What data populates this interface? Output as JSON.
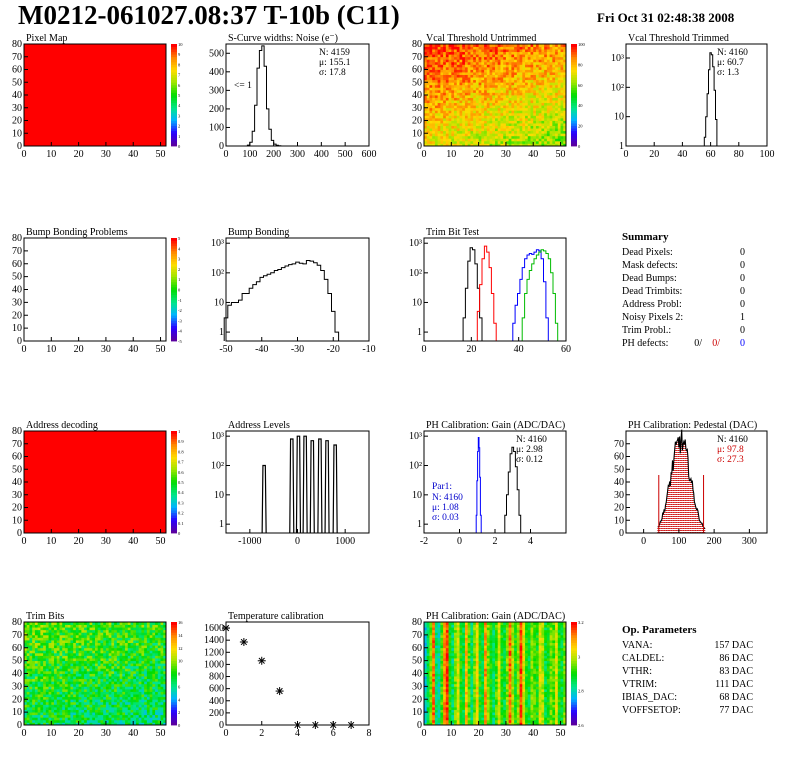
{
  "header": {
    "title": "M0212-061027.08:37 T-10b (C11)",
    "date": "Fri Oct 31 02:48:38 2008"
  },
  "chart_data": [
    {
      "id": "pixel-map",
      "type": "heatmap",
      "title": "Pixel Map",
      "x_range": [
        0,
        52
      ],
      "y_range": [
        0,
        80
      ],
      "x_ticks": [
        "0",
        "10",
        "20",
        "30",
        "40",
        "50"
      ],
      "y_ticks": [
        "0",
        "10",
        "20",
        "30",
        "40",
        "50",
        "60",
        "70",
        "80"
      ],
      "z_range": [
        0,
        10
      ],
      "z_ticks": [
        "0",
        "1",
        "2",
        "3",
        "4",
        "5",
        "6",
        "7",
        "8",
        "9",
        "10"
      ],
      "fill": "uniform",
      "value": 10
    },
    {
      "id": "s-curve",
      "type": "histogram",
      "title": "S-Curve widths: Noise (e⁻)",
      "x_range": [
        0,
        600
      ],
      "y_range": [
        0,
        550
      ],
      "x_ticks": [
        "0",
        "100",
        "200",
        "300",
        "400",
        "500",
        "600"
      ],
      "y_ticks": [
        "0",
        "100",
        "200",
        "300",
        "400",
        "500"
      ],
      "stats": [
        "N: 4159",
        "μ: 155.1",
        "σ: 17.8"
      ],
      "annotation": "<= 1",
      "x": [
        95,
        105,
        115,
        125,
        135,
        145,
        155,
        165,
        175,
        185,
        195,
        205,
        215,
        225
      ],
      "values": [
        5,
        20,
        80,
        220,
        420,
        515,
        540,
        430,
        200,
        90,
        30,
        10,
        4,
        1
      ]
    },
    {
      "id": "vcal-untrimmed",
      "type": "heatmap",
      "title": "Vcal Threshold Untrimmed",
      "x_range": [
        0,
        52
      ],
      "y_range": [
        0,
        80
      ],
      "x_ticks": [
        "0",
        "10",
        "20",
        "30",
        "40",
        "50"
      ],
      "y_ticks": [
        "0",
        "10",
        "20",
        "30",
        "40",
        "50",
        "60",
        "70",
        "80"
      ],
      "z_ticks": [
        "0",
        "20",
        "40",
        "60",
        "80",
        "100"
      ],
      "fill": "gradient-noise"
    },
    {
      "id": "vcal-trimmed",
      "type": "histogram",
      "title": "Vcal Threshold Trimmed",
      "log_y": true,
      "x_range": [
        0,
        100
      ],
      "y_range": [
        1,
        3000
      ],
      "x_ticks": [
        "0",
        "20",
        "40",
        "60",
        "80",
        "100"
      ],
      "y_ticks": [
        "1",
        "10",
        "10²",
        "10³"
      ],
      "stats": [
        "N: 4160",
        "μ: 60.7",
        "σ: 1.3"
      ],
      "x": [
        56,
        57,
        58,
        59,
        60,
        61,
        62,
        63,
        64,
        65
      ],
      "values": [
        2,
        10,
        60,
        400,
        1500,
        1300,
        500,
        80,
        8,
        1
      ]
    },
    {
      "id": "bump-problems",
      "type": "heatmap",
      "title": "Bump Bonding Problems",
      "x_range": [
        0,
        52
      ],
      "y_range": [
        0,
        80
      ],
      "x_ticks": [
        "0",
        "10",
        "20",
        "30",
        "40",
        "50"
      ],
      "y_ticks": [
        "0",
        "10",
        "20",
        "30",
        "40",
        "50",
        "60",
        "70",
        "80"
      ],
      "z_ticks": [
        "-5",
        "-4",
        "-3",
        "-2",
        "-1",
        "0",
        "1",
        "2",
        "3",
        "4",
        "5"
      ],
      "fill": "empty"
    },
    {
      "id": "bump-bonding",
      "type": "histogram",
      "title": "Bump Bonding",
      "log_y": true,
      "x_range": [
        -50,
        -10
      ],
      "y_range": [
        0.5,
        1500
      ],
      "x_ticks": [
        "-50",
        "-40",
        "-30",
        "-20",
        "-10"
      ],
      "y_ticks": [
        "1",
        "10",
        "10²",
        "10³"
      ],
      "x": [
        -50,
        -49,
        -48,
        -47,
        -46,
        -45,
        -44,
        -43,
        -42,
        -41,
        -40,
        -39,
        -38,
        -37,
        -36,
        -35,
        -34,
        -33,
        -32,
        -31,
        -30,
        -29,
        -28,
        -27,
        -26,
        -25,
        -24,
        -23,
        -22,
        -21,
        -20,
        -19,
        -18
      ],
      "values": [
        3,
        8,
        10,
        10,
        12,
        20,
        20,
        30,
        40,
        50,
        70,
        80,
        90,
        100,
        120,
        130,
        150,
        170,
        190,
        200,
        230,
        210,
        200,
        260,
        250,
        220,
        180,
        120,
        60,
        20,
        5,
        1,
        0
      ]
    },
    {
      "id": "trim-bit-test",
      "type": "histogram",
      "title": "Trim Bit Test",
      "log_y": true,
      "x_range": [
        0,
        60
      ],
      "y_range": [
        0.5,
        1500
      ],
      "x_ticks": [
        "0",
        "20",
        "40",
        "60"
      ],
      "y_ticks": [
        "1",
        "10",
        "10²",
        "10³"
      ],
      "series": [
        {
          "color": "#000000",
          "x": [
            17,
            18,
            19,
            20,
            21,
            22,
            23,
            24
          ],
          "values": [
            3,
            30,
            250,
            700,
            600,
            200,
            30,
            3
          ]
        },
        {
          "color": "#ff0000",
          "x": [
            23,
            24,
            25,
            26,
            27,
            28,
            29,
            30
          ],
          "values": [
            5,
            40,
            300,
            800,
            500,
            150,
            20,
            2
          ]
        },
        {
          "color": "#0000ff",
          "x": [
            38,
            39,
            40,
            41,
            42,
            43,
            44,
            45,
            46,
            47,
            48,
            49,
            50,
            51,
            52
          ],
          "values": [
            2,
            8,
            20,
            60,
            150,
            300,
            400,
            450,
            420,
            500,
            600,
            550,
            300,
            50,
            3
          ]
        },
        {
          "color": "#00bb00",
          "x": [
            42,
            43,
            44,
            45,
            46,
            47,
            48,
            49,
            50,
            51,
            52,
            53,
            54,
            55,
            56
          ],
          "values": [
            3,
            20,
            60,
            120,
            200,
            300,
            400,
            500,
            600,
            550,
            450,
            300,
            100,
            20,
            2
          ]
        }
      ]
    },
    {
      "id": "address-decoding",
      "type": "heatmap",
      "title": "Address decoding",
      "x_range": [
        0,
        52
      ],
      "y_range": [
        0,
        80
      ],
      "x_ticks": [
        "0",
        "10",
        "20",
        "30",
        "40",
        "50"
      ],
      "y_ticks": [
        "0",
        "10",
        "20",
        "30",
        "40",
        "50",
        "60",
        "70",
        "80"
      ],
      "z_ticks": [
        "0",
        "0.1",
        "0.2",
        "0.3",
        "0.4",
        "0.5",
        "0.6",
        "0.7",
        "0.8",
        "0.9",
        "1"
      ],
      "fill": "uniform",
      "value": 1
    },
    {
      "id": "address-levels",
      "type": "histogram",
      "title": "Address Levels",
      "log_y": true,
      "x_range": [
        -1500,
        1500
      ],
      "y_range": [
        0.5,
        1500
      ],
      "x_ticks": [
        "-1000",
        "0",
        "1000"
      ],
      "y_ticks": [
        "1",
        "10",
        "10²",
        "10³"
      ],
      "peaks_x": [
        -700,
        -120,
        20,
        160,
        310,
        470,
        620,
        790
      ],
      "peaks_y": [
        100,
        800,
        1000,
        1000,
        700,
        800,
        700,
        500
      ]
    },
    {
      "id": "ph-gain",
      "type": "histogram",
      "title": "PH Calibration: Gain (ADC/DAC)",
      "log_y": true,
      "x_range": [
        -2,
        6
      ],
      "y_range": [
        0.5,
        1500
      ],
      "x_ticks": [
        "-2",
        "0",
        "2",
        "4"
      ],
      "y_ticks": [
        "1",
        "10",
        "10²",
        "10³"
      ],
      "stats": [
        "N: 4160",
        "μ: 2.98",
        "σ: 0.12"
      ],
      "stats2_title": "Par1:",
      "stats2": [
        "N: 4160",
        "μ: 1.08",
        "σ: 0.03"
      ],
      "series": [
        {
          "color": "#000000",
          "x": [
            2.6,
            2.7,
            2.8,
            2.9,
            3.0,
            3.1,
            3.2,
            3.3,
            3.4
          ],
          "values": [
            2,
            10,
            60,
            250,
            420,
            300,
            90,
            15,
            2
          ]
        },
        {
          "color": "#0000ff",
          "x": [
            0.96,
            1.0,
            1.04,
            1.08,
            1.12,
            1.16,
            1.2
          ],
          "values": [
            2,
            30,
            300,
            900,
            400,
            40,
            2
          ]
        }
      ]
    },
    {
      "id": "ph-pedestal",
      "type": "histogram",
      "title": "PH Calibration: Pedestal (DAC)",
      "x_range": [
        -50,
        350
      ],
      "y_range": [
        0,
        80
      ],
      "x_ticks": [
        "0",
        "100",
        "200",
        "300"
      ],
      "y_ticks": [
        "0",
        "10",
        "20",
        "30",
        "40",
        "50",
        "60",
        "70"
      ],
      "stats": [
        "N: 4160",
        "μ: 97.8",
        "σ: 27.3"
      ],
      "center": 105,
      "sigma": 28,
      "peak": 72,
      "cut_lines_x": [
        43,
        170
      ]
    },
    {
      "id": "trim-bits",
      "type": "heatmap",
      "title": "Trim Bits",
      "x_range": [
        0,
        52
      ],
      "y_range": [
        0,
        80
      ],
      "x_ticks": [
        "0",
        "10",
        "20",
        "30",
        "40",
        "50"
      ],
      "y_ticks": [
        "0",
        "10",
        "20",
        "30",
        "40",
        "50",
        "60",
        "70",
        "80"
      ],
      "z_ticks": [
        "0",
        "2",
        "4",
        "6",
        "8",
        "10",
        "12",
        "14",
        "16"
      ],
      "fill": "noise-green"
    },
    {
      "id": "temperature-calibration",
      "type": "scatter",
      "title": "Temperature calibration",
      "x_range": [
        0,
        8
      ],
      "y_range": [
        0,
        1700
      ],
      "x_ticks": [
        "0",
        "2",
        "4",
        "6",
        "8"
      ],
      "y_ticks": [
        "0",
        "200",
        "400",
        "600",
        "800",
        "1000",
        "1200",
        "1400",
        "1600"
      ],
      "x": [
        0,
        1,
        2,
        3,
        4,
        5,
        6,
        7
      ],
      "values": [
        1600,
        1370,
        1060,
        560,
        0,
        0,
        0,
        0
      ]
    },
    {
      "id": "ph-gain-map",
      "type": "heatmap",
      "title": "PH Calibration: Gain (ADC/DAC)",
      "x_range": [
        0,
        52
      ],
      "y_range": [
        0,
        80
      ],
      "x_ticks": [
        "0",
        "10",
        "20",
        "30",
        "40",
        "50"
      ],
      "y_ticks": [
        "0",
        "10",
        "20",
        "30",
        "40",
        "50",
        "60",
        "70",
        "80"
      ],
      "z_ticks": [
        "2.6",
        "2.8",
        "3",
        "3.2"
      ],
      "fill": "columns"
    }
  ],
  "summary": {
    "title": "Summary",
    "rows": [
      {
        "label": "Dead Pixels:",
        "value": "0"
      },
      {
        "label": "Mask defects:",
        "value": "0"
      },
      {
        "label": "Dead Bumps:",
        "value": "0"
      },
      {
        "label": "Dead Trimbits:",
        "value": "0"
      },
      {
        "label": "Address Probl:",
        "value": "0"
      },
      {
        "label": "Noisy Pixels 2:",
        "value": "1"
      },
      {
        "label": "Trim Probl.:",
        "value": "0"
      }
    ],
    "ph_defects_label": "PH defects:",
    "ph_defects": [
      "0/",
      "0/",
      "0"
    ],
    "ph_defects_colors": [
      "#000000",
      "#cc0000",
      "#0000ff"
    ]
  },
  "op_parameters": {
    "title": "Op. Parameters",
    "rows": [
      {
        "label": "VANA:",
        "value": "157 DAC"
      },
      {
        "label": "CALDEL:",
        "value": "86 DAC"
      },
      {
        "label": "VTHR:",
        "value": "83 DAC"
      },
      {
        "label": "VTRIM:",
        "value": "111 DAC"
      },
      {
        "label": "IBIAS_DAC:",
        "value": "68 DAC"
      },
      {
        "label": "VOFFSETOP:",
        "value": "77 DAC"
      }
    ]
  }
}
